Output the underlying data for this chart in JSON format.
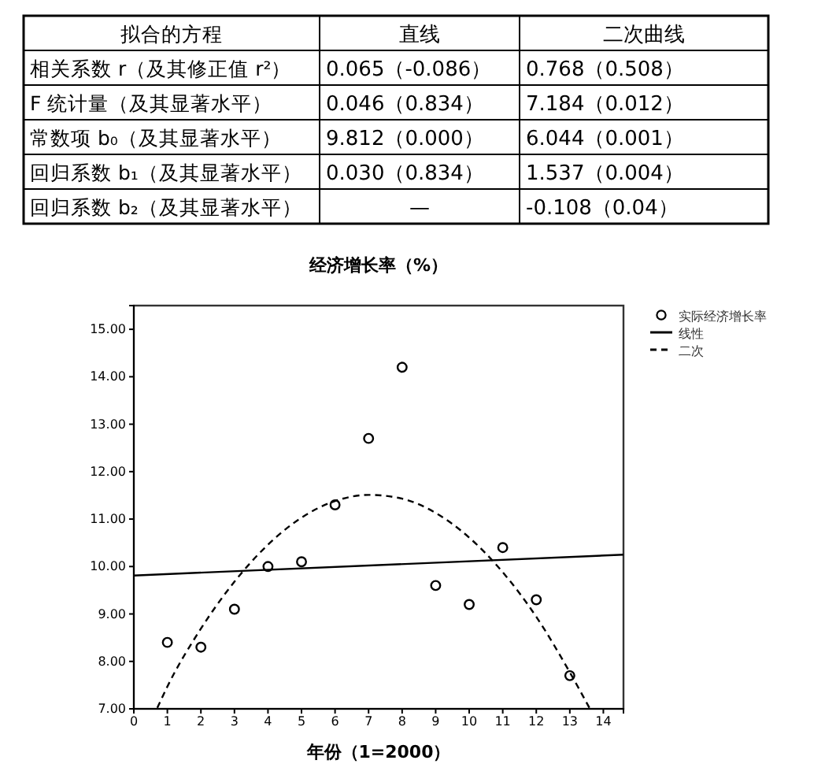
{
  "chart_data": [
    {
      "type": "other",
      "annotations": [
        "拟合的方程",
        "直线",
        "二次曲线",
        "相关系数 r（及其修正值 r²）",
        "0.065（-0.086）",
        "0.768（0.508）",
        "F 统计量（及其显著水平）",
        "0.046（0.834）",
        "7.184（0.012）",
        "常数项 b₀（及其显著水平）",
        "9.812（0.000）",
        "6.044（0.001）",
        "回归系数 b₁（及其显著水平）",
        "0.030（0.834）",
        "1.537（0.004）",
        "回归系数 b₂（及其显著水平）",
        "—",
        "-0.108（0.04）"
      ]
    },
    {
      "type": "scatter",
      "title": "经济增长率（%）",
      "xlabel": "年份（1=2000）",
      "xlim": [
        0,
        14.6
      ],
      "xticks": [
        0,
        1,
        2,
        3,
        4,
        5,
        6,
        7,
        8,
        9,
        10,
        11,
        12,
        13,
        14
      ],
      "ylim": [
        7,
        15.5
      ],
      "yticks": [
        {
          "value": 7,
          "label": "7.00"
        },
        {
          "value": 8,
          "label": "8.00"
        },
        {
          "value": 9,
          "label": "9.00"
        },
        {
          "value": 10,
          "label": "10.00"
        },
        {
          "value": 11,
          "label": "11.00"
        },
        {
          "value": 12,
          "label": "12.00"
        },
        {
          "value": 13,
          "label": "13.00"
        },
        {
          "value": 14,
          "label": "14.00"
        },
        {
          "value": 15,
          "label": "15.00"
        }
      ],
      "grid": false,
      "legend": "top right",
      "series": [
        {
          "name": "实际经济增长率",
          "type": "scatter",
          "marker": "circle",
          "color": "#000000",
          "x": [
            1,
            2,
            3,
            4,
            5,
            6,
            7,
            8,
            9,
            10,
            11,
            12,
            13
          ],
          "values": [
            8.4,
            8.3,
            9.1,
            10.0,
            10.1,
            11.3,
            12.7,
            14.2,
            9.6,
            9.2,
            10.4,
            9.3,
            7.7
          ]
        },
        {
          "name": "线性",
          "type": "line",
          "line_style": "solid",
          "color": "#000000",
          "x": [
            0,
            14.6
          ],
          "values": [
            9.81,
            10.25
          ]
        },
        {
          "name": "二次",
          "type": "line",
          "line_style": "dashed",
          "color": "#000000",
          "x": [
            0.7,
            1,
            2,
            3,
            4,
            5,
            6,
            7,
            8,
            9,
            10,
            11,
            12,
            13,
            13.6
          ],
          "values": [
            7.02,
            7.47,
            8.69,
            9.68,
            10.46,
            11.03,
            11.38,
            11.51,
            11.43,
            11.13,
            10.61,
            9.88,
            8.94,
            7.77,
            7.0
          ]
        }
      ]
    }
  ]
}
